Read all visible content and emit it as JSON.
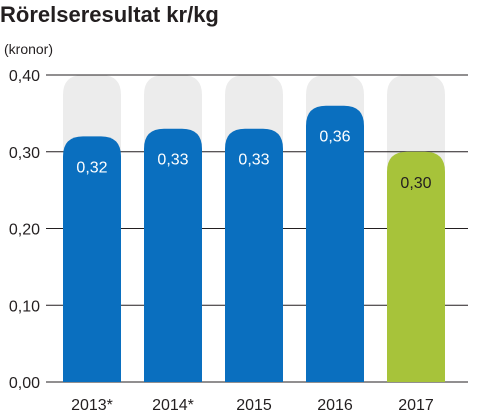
{
  "chart_data": {
    "type": "bar",
    "title": "Rörelseresultat kr/kg",
    "unit_label": "(kronor)",
    "categories": [
      "2013*",
      "2014*",
      "2015",
      "2016",
      "2017"
    ],
    "values": [
      0.32,
      0.33,
      0.33,
      0.36,
      0.3
    ],
    "value_labels": [
      "0,32",
      "0,33",
      "0,33",
      "0,36",
      "0,30"
    ],
    "ylim": [
      0,
      0.4
    ],
    "yticks": [
      0,
      0.1,
      0.2,
      0.3,
      0.4
    ],
    "ytick_labels": [
      "0,00",
      "0,10",
      "0,20",
      "0,30",
      "0,40"
    ],
    "grid": true,
    "colors": {
      "bar": "#0a6fbf",
      "highlight_bar": "#a7c33a",
      "background_bar": "#ececec",
      "grid": "#231f20",
      "label_light": "#ffffff",
      "label_dark": "#231f20"
    },
    "highlight_index": 4
  }
}
